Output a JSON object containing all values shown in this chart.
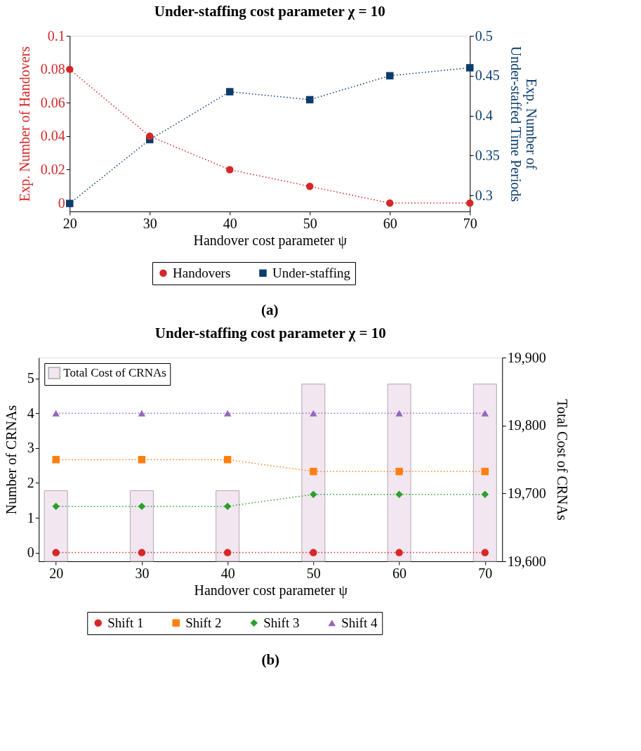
{
  "chart_data": [
    {
      "type": "line",
      "title": "Under-staffing cost parameter χ = 10",
      "xlabel": "Handover cost parameter ψ",
      "ylabel": "Exp. Number of Handovers",
      "y2label": "Exp. Number of\nUnder-staffed Time Periods",
      "x": [
        20,
        30,
        40,
        50,
        60,
        70
      ],
      "series": [
        {
          "name": "Handovers",
          "color": "#d62728",
          "marker": "circle",
          "values": [
            0.08,
            0.04,
            0.02,
            0.01,
            0,
            0
          ]
        },
        {
          "name": "Under-staffing",
          "color": "#0b3c6e",
          "marker": "square",
          "axis": "y2",
          "values": [
            0.29,
            0.37,
            0.43,
            0.42,
            0.45,
            0.46
          ]
        }
      ],
      "xlim": [
        20,
        70
      ],
      "xticks": [
        20,
        30,
        40,
        50,
        60,
        70
      ],
      "ylim": [
        -0.005,
        0.1
      ],
      "yticks": [
        0,
        0.02,
        0.04,
        0.06,
        0.08,
        0.1
      ],
      "y2lim": [
        0.28,
        0.5
      ],
      "y2ticks": [
        0.3,
        0.35,
        0.4,
        0.45,
        0.5
      ],
      "grid": false,
      "legend": "bottom",
      "line_style": "dotted",
      "annotations": [
        "(a)"
      ]
    },
    {
      "type": "line",
      "title": "Under-staffing cost parameter χ = 10",
      "xlabel": "Handover cost parameter ψ",
      "ylabel": "Number of CRNAs",
      "y2label": "Total Cost of CRNAs",
      "x": [
        20,
        30,
        40,
        50,
        60,
        70
      ],
      "series": [
        {
          "name": "Total Cost of CRNAs",
          "type": "bar",
          "axis": "y2",
          "color": "#f2e6f0",
          "values": [
            19704,
            19704,
            19704,
            19861,
            19861,
            19861
          ]
        },
        {
          "name": "Shift 1",
          "color": "#d62728",
          "marker": "circle",
          "values": [
            0,
            0,
            0,
            0,
            0,
            0
          ]
        },
        {
          "name": "Shift 2",
          "color": "#ff7f0e",
          "marker": "square",
          "values": [
            2.67,
            2.67,
            2.67,
            2.33,
            2.33,
            2.33
          ]
        },
        {
          "name": "Shift 3",
          "color": "#2ca02c",
          "marker": "diamond",
          "values": [
            1.33,
            1.33,
            1.33,
            1.67,
            1.67,
            1.67
          ]
        },
        {
          "name": "Shift 4",
          "color": "#9467bd",
          "marker": "triangle",
          "values": [
            4,
            4,
            4,
            4,
            4,
            4
          ]
        }
      ],
      "xlim": [
        18,
        72
      ],
      "xticks": [
        20,
        30,
        40,
        50,
        60,
        70
      ],
      "ylim": [
        -0.25,
        5.6
      ],
      "yticks": [
        0,
        1,
        2,
        3,
        4,
        5
      ],
      "y2lim": [
        19600,
        19900
      ],
      "y2ticks": [
        {
          "value": 19600,
          "label": "19,600"
        },
        {
          "value": 19700,
          "label": "19,700"
        },
        {
          "value": 19800,
          "label": "19,800"
        },
        {
          "value": 19900,
          "label": "19,900"
        }
      ],
      "grid": false,
      "legend": "bottom",
      "line_style": "dotted",
      "annotations": [
        "(b)"
      ]
    }
  ]
}
